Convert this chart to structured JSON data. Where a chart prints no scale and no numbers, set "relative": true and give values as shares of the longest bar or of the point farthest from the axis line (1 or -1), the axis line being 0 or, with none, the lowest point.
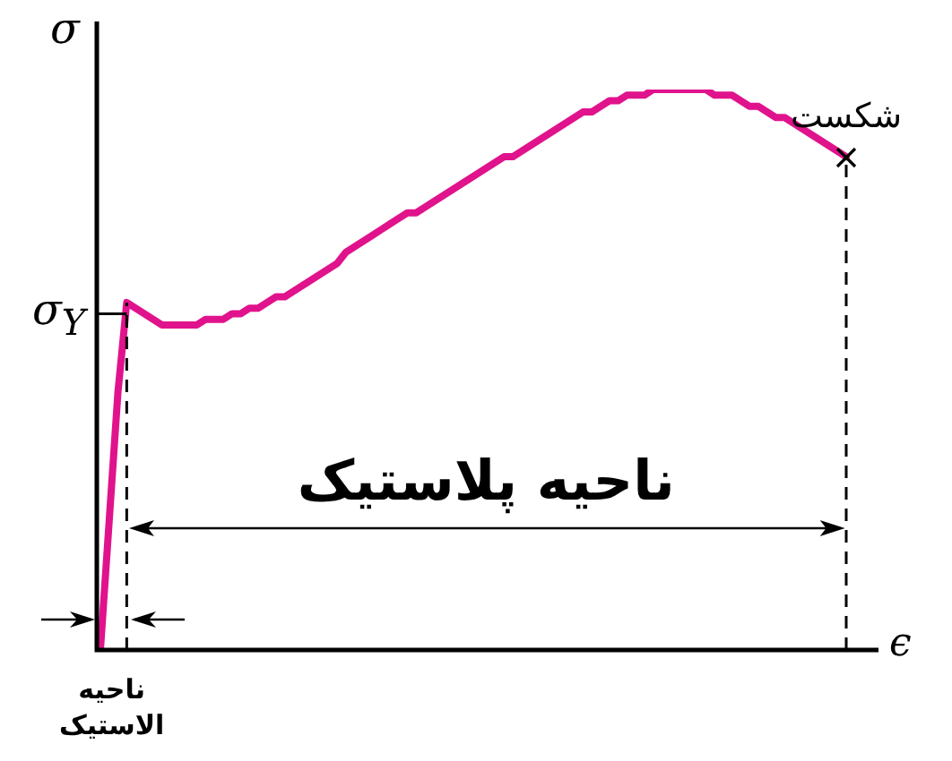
{
  "chart_data": {
    "type": "line",
    "relative": true,
    "xlabel": "ϵ",
    "ylabel": "σ",
    "categories": [
      null,
      null,
      null,
      null,
      null,
      null,
      null,
      null,
      null,
      null,
      null,
      null,
      null,
      null,
      null,
      null,
      null,
      null,
      null,
      null,
      null,
      null,
      null,
      null,
      null,
      null,
      null,
      null,
      null,
      null,
      null,
      null,
      null,
      null,
      null,
      null,
      null,
      null,
      null,
      null,
      null,
      null,
      null,
      null,
      null,
      null,
      null,
      null,
      null,
      null,
      null,
      null,
      null,
      null,
      null,
      null,
      null,
      null,
      null,
      null,
      null,
      null,
      null,
      null,
      null,
      null,
      null,
      null,
      null,
      null,
      null,
      null,
      null,
      null,
      null,
      null,
      null,
      null,
      null,
      null,
      null,
      null,
      null,
      null,
      null,
      null
    ],
    "series": [
      {
        "color": "#e0138c",
        "values": [
          0,
          0.23,
          0.46,
          0.62,
          0.61,
          0.6,
          0.59,
          0.58,
          0.58,
          0.58,
          0.58,
          0.58,
          0.59,
          0.59,
          0.59,
          0.6,
          0.6,
          0.61,
          0.61,
          0.62,
          0.63,
          0.63,
          0.64,
          0.65,
          0.66,
          0.67,
          0.68,
          0.69,
          0.71,
          0.72,
          0.73,
          0.74,
          0.75,
          0.76,
          0.77,
          0.78,
          0.78,
          0.79,
          0.8,
          0.81,
          0.82,
          0.83,
          0.84,
          0.85,
          0.86,
          0.87,
          0.88,
          0.88,
          0.89,
          0.9,
          0.91,
          0.92,
          0.93,
          0.94,
          0.95,
          0.96,
          0.96,
          0.97,
          0.98,
          0.98,
          0.99,
          0.99,
          0.99,
          1,
          1,
          1,
          1,
          1,
          1,
          1,
          0.99,
          0.99,
          0.99,
          0.98,
          0.97,
          0.97,
          0.96,
          0.95,
          0.95,
          0.94,
          0.93,
          0.92,
          0.91,
          0.9,
          0.89,
          0.88
        ]
      }
    ],
    "ref_lines": [
      {
        "axis": "y",
        "value": 0.6,
        "label": "σ$_{Y}$"
      }
    ],
    "annotations": [
      "شکست",
      "ناحیه پلاستیک",
      "ناحیه الاستیک"
    ]
  }
}
